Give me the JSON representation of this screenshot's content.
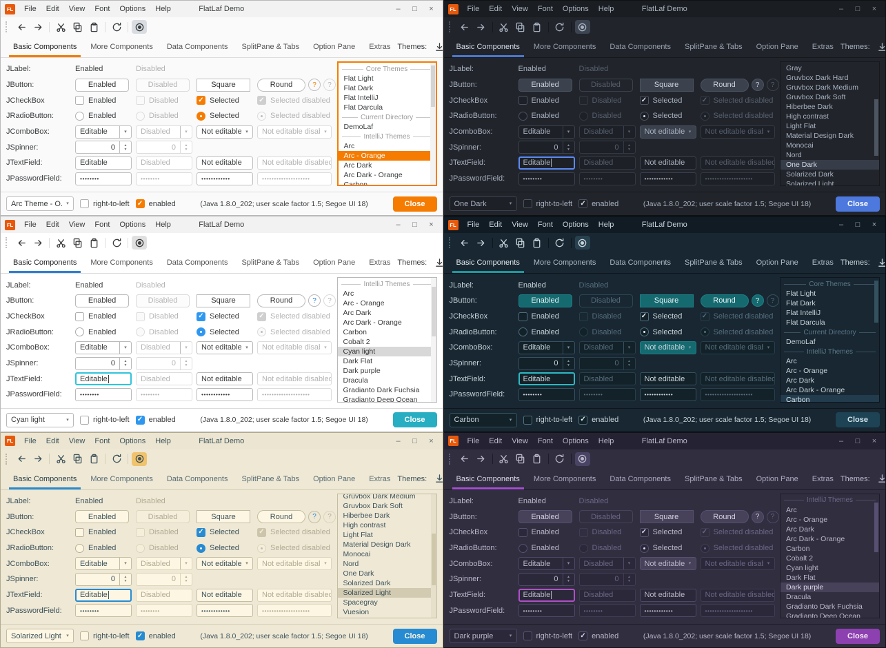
{
  "shared": {
    "logo_text": "FL",
    "window_title": "FlatLaf Demo",
    "menu": [
      "File",
      "Edit",
      "View",
      "Font",
      "Options",
      "Help"
    ],
    "window_controls": {
      "minimize": "–",
      "maximize": "□",
      "close": "×"
    },
    "tabs": [
      "Basic Components",
      "More Components",
      "Data Components",
      "SplitPane & Tabs",
      "Option Pane",
      "Extras"
    ],
    "selected_tab": "Basic Components",
    "themes": {
      "label": "Themes:",
      "filter": "all"
    },
    "icons": {
      "dropdown_arrow": "▾",
      "spinner_up": "▲",
      "spinner_down": "▼",
      "check_mark": "✓"
    },
    "form": {
      "jlabel": {
        "label": "JLabel:",
        "cells": [
          "Enabled",
          "Disabled"
        ]
      },
      "jbutton": {
        "label": "JButton:",
        "cells": [
          "Enabled",
          "Disabled",
          "Square",
          "Round"
        ],
        "help": "?"
      },
      "jcheckbox": {
        "label": "JCheckBox",
        "cells": [
          "Enabled",
          "Disabled",
          "Selected",
          "Selected disabled"
        ]
      },
      "jradiobutton": {
        "label": "JRadioButton:",
        "cells": [
          "Enabled",
          "Disabled",
          "Selected",
          "Selected disabled"
        ]
      },
      "jcombobox": {
        "label": "JComboBox:",
        "cells": [
          "Editable",
          "Disabled",
          "Not editable",
          "Not editable disabled"
        ]
      },
      "jspinner": {
        "label": "JSpinner:",
        "value": "0"
      },
      "jtextfield": {
        "label": "JTextField:",
        "cells": [
          "Editable",
          "Disabled",
          "Not editable",
          "Not editable disabled"
        ]
      },
      "jpasswordfield": {
        "label": "JPasswordField:",
        "cells": [
          "••••••••",
          "••••••••",
          "••••••••••••",
          "••••••••••••••••••••"
        ]
      }
    },
    "statusbar": {
      "right_to_left": "right-to-left",
      "enabled": "enabled",
      "java_info": "(Java 1.8.0_202;  user scale factor 1.5; Segoe UI 18)",
      "close": "Close"
    }
  },
  "panels": [
    {
      "id": "arc-orange",
      "mode": "light",
      "selected_theme": "Arc - Orange",
      "status_combo": "Arc Theme - O...",
      "colors": {
        "accent": "#f57c00",
        "close_button": "#f57c00",
        "background": "#fafafa"
      },
      "theme_list": [
        {
          "type": "separator",
          "label": "Core Themes"
        },
        {
          "type": "theme",
          "label": "Flat Light"
        },
        {
          "type": "theme",
          "label": "Flat Dark"
        },
        {
          "type": "theme",
          "label": "Flat IntelliJ"
        },
        {
          "type": "theme",
          "label": "Flat Darcula"
        },
        {
          "type": "separator",
          "label": "Current Directory"
        },
        {
          "type": "theme",
          "label": "DemoLaf"
        },
        {
          "type": "separator",
          "label": "IntelliJ Themes"
        },
        {
          "type": "theme",
          "label": "Arc"
        },
        {
          "type": "theme",
          "label": "Arc - Orange",
          "selected": true
        },
        {
          "type": "theme",
          "label": "Arc Dark"
        },
        {
          "type": "theme",
          "label": "Arc Dark - Orange"
        },
        {
          "type": "theme",
          "label": "Carbon"
        }
      ]
    },
    {
      "id": "one-dark",
      "mode": "dark",
      "selected_theme": "One Dark",
      "status_combo": "One Dark",
      "colors": {
        "accent": "#4d78cc",
        "close_button": "#4d78dd",
        "background": "#21252b"
      },
      "theme_list": [
        {
          "type": "theme",
          "label": "Gray"
        },
        {
          "type": "theme",
          "label": "Gruvbox Dark Hard"
        },
        {
          "type": "theme",
          "label": "Gruvbox Dark Medium"
        },
        {
          "type": "theme",
          "label": "Gruvbox Dark Soft"
        },
        {
          "type": "theme",
          "label": "Hiberbee Dark"
        },
        {
          "type": "theme",
          "label": "High contrast"
        },
        {
          "type": "theme",
          "label": "Light Flat"
        },
        {
          "type": "theme",
          "label": "Material Design Dark"
        },
        {
          "type": "theme",
          "label": "Monocai"
        },
        {
          "type": "theme",
          "label": "Nord"
        },
        {
          "type": "theme",
          "label": "One Dark",
          "selected": true
        },
        {
          "type": "theme",
          "label": "Solarized Dark"
        },
        {
          "type": "theme",
          "label": "Solarized Light"
        }
      ]
    },
    {
      "id": "cyan-light",
      "mode": "light",
      "selected_theme": "Cyan light",
      "status_combo": "Cyan light",
      "colors": {
        "accent": "#2e97f0",
        "close_button": "#27aec2",
        "background": "#ffffff"
      },
      "theme_list": [
        {
          "type": "separator",
          "label": "IntelliJ Themes"
        },
        {
          "type": "theme",
          "label": "Arc"
        },
        {
          "type": "theme",
          "label": "Arc - Orange"
        },
        {
          "type": "theme",
          "label": "Arc Dark"
        },
        {
          "type": "theme",
          "label": "Arc Dark - Orange"
        },
        {
          "type": "theme",
          "label": "Carbon"
        },
        {
          "type": "theme",
          "label": "Cobalt 2"
        },
        {
          "type": "theme",
          "label": "Cyan light",
          "selected": true
        },
        {
          "type": "theme",
          "label": "Dark Flat"
        },
        {
          "type": "theme",
          "label": "Dark purple"
        },
        {
          "type": "theme",
          "label": "Dracula"
        },
        {
          "type": "theme",
          "label": "Gradianto Dark Fuchsia"
        },
        {
          "type": "theme",
          "label": "Gradianto Deep Ocean"
        }
      ]
    },
    {
      "id": "carbon",
      "mode": "dark",
      "selected_theme": "Carbon",
      "status_combo": "Carbon",
      "colors": {
        "accent": "#17696f",
        "close_button": "#1d4355",
        "background": "#182732"
      },
      "theme_list": [
        {
          "type": "separator",
          "label": "Core Themes"
        },
        {
          "type": "theme",
          "label": "Flat Light"
        },
        {
          "type": "theme",
          "label": "Flat Dark"
        },
        {
          "type": "theme",
          "label": "Flat IntelliJ"
        },
        {
          "type": "theme",
          "label": "Flat Darcula"
        },
        {
          "type": "separator",
          "label": "Current Directory"
        },
        {
          "type": "theme",
          "label": "DemoLaf"
        },
        {
          "type": "separator",
          "label": "IntelliJ Themes"
        },
        {
          "type": "theme",
          "label": "Arc"
        },
        {
          "type": "theme",
          "label": "Arc - Orange"
        },
        {
          "type": "theme",
          "label": "Arc Dark"
        },
        {
          "type": "theme",
          "label": "Arc Dark - Orange"
        },
        {
          "type": "theme",
          "label": "Carbon",
          "selected": true
        }
      ]
    },
    {
      "id": "solarized-light",
      "mode": "light",
      "selected_theme": "Solarized Light",
      "status_combo": "Solarized Light",
      "colors": {
        "accent": "#268bd2",
        "close_button": "#268bd2",
        "background": "#eee8d5"
      },
      "theme_list": [
        {
          "type": "theme",
          "label": "Gruvbox Dark Medium"
        },
        {
          "type": "theme",
          "label": "Gruvbox Dark Soft"
        },
        {
          "type": "theme",
          "label": "Hiberbee Dark"
        },
        {
          "type": "theme",
          "label": "High contrast"
        },
        {
          "type": "theme",
          "label": "Light Flat"
        },
        {
          "type": "theme",
          "label": "Material Design Dark"
        },
        {
          "type": "theme",
          "label": "Monocai"
        },
        {
          "type": "theme",
          "label": "Nord"
        },
        {
          "type": "theme",
          "label": "One Dark"
        },
        {
          "type": "theme",
          "label": "Solarized Dark"
        },
        {
          "type": "theme",
          "label": "Solarized Light",
          "selected": true
        },
        {
          "type": "theme",
          "label": "Spacegray"
        },
        {
          "type": "theme",
          "label": "Vuesion"
        }
      ]
    },
    {
      "id": "dark-purple",
      "mode": "dark",
      "selected_theme": "Dark purple",
      "status_combo": "Dark purple",
      "colors": {
        "accent": "#a44fd0",
        "close_button": "#8d41b0",
        "background": "#312e40"
      },
      "theme_list": [
        {
          "type": "separator",
          "label": "IntelliJ Themes"
        },
        {
          "type": "theme",
          "label": "Arc"
        },
        {
          "type": "theme",
          "label": "Arc - Orange"
        },
        {
          "type": "theme",
          "label": "Arc Dark"
        },
        {
          "type": "theme",
          "label": "Arc Dark - Orange"
        },
        {
          "type": "theme",
          "label": "Carbon"
        },
        {
          "type": "theme",
          "label": "Cobalt 2"
        },
        {
          "type": "theme",
          "label": "Cyan light"
        },
        {
          "type": "theme",
          "label": "Dark Flat"
        },
        {
          "type": "theme",
          "label": "Dark purple",
          "selected": true
        },
        {
          "type": "theme",
          "label": "Dracula"
        },
        {
          "type": "theme",
          "label": "Gradianto Dark Fuchsia"
        },
        {
          "type": "theme",
          "label": "Gradianto Deep Ocean"
        }
      ]
    }
  ]
}
